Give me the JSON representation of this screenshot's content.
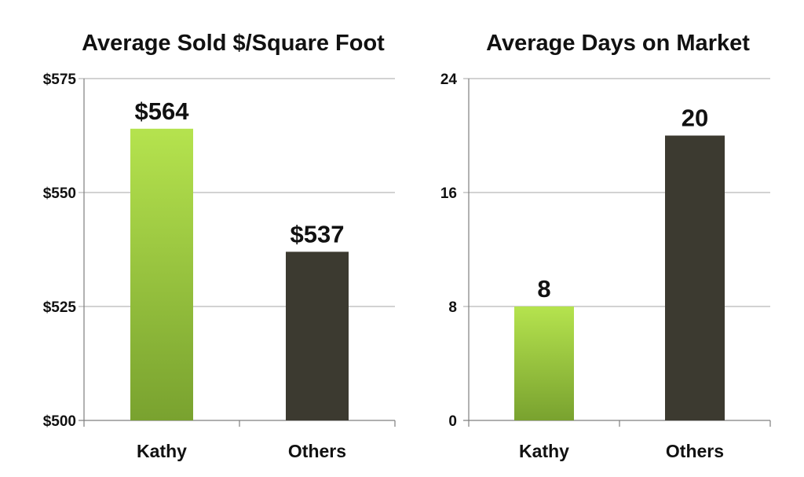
{
  "chart_data": [
    {
      "type": "bar",
      "title": "Average Sold $/Square Foot",
      "categories": [
        "Kathy",
        "Others"
      ],
      "values": [
        564,
        537
      ],
      "data_labels": [
        "$564",
        "$537"
      ],
      "ylim": [
        500,
        575
      ],
      "yticks": [
        500,
        525,
        550,
        575
      ],
      "ytick_labels": [
        "$500",
        "$525",
        "$550",
        "$575"
      ],
      "grid": true,
      "bar_colors": [
        "#8bc43a",
        "#3c3a30"
      ]
    },
    {
      "type": "bar",
      "title": "Average Days on Market",
      "categories": [
        "Kathy",
        "Others"
      ],
      "values": [
        8,
        20
      ],
      "data_labels": [
        "8",
        "20"
      ],
      "ylim": [
        0,
        24
      ],
      "yticks": [
        0,
        8,
        16,
        24
      ],
      "ytick_labels": [
        "0",
        "8",
        "16",
        "24"
      ],
      "grid": true,
      "bar_colors": [
        "#8bc43a",
        "#3c3a30"
      ]
    }
  ]
}
